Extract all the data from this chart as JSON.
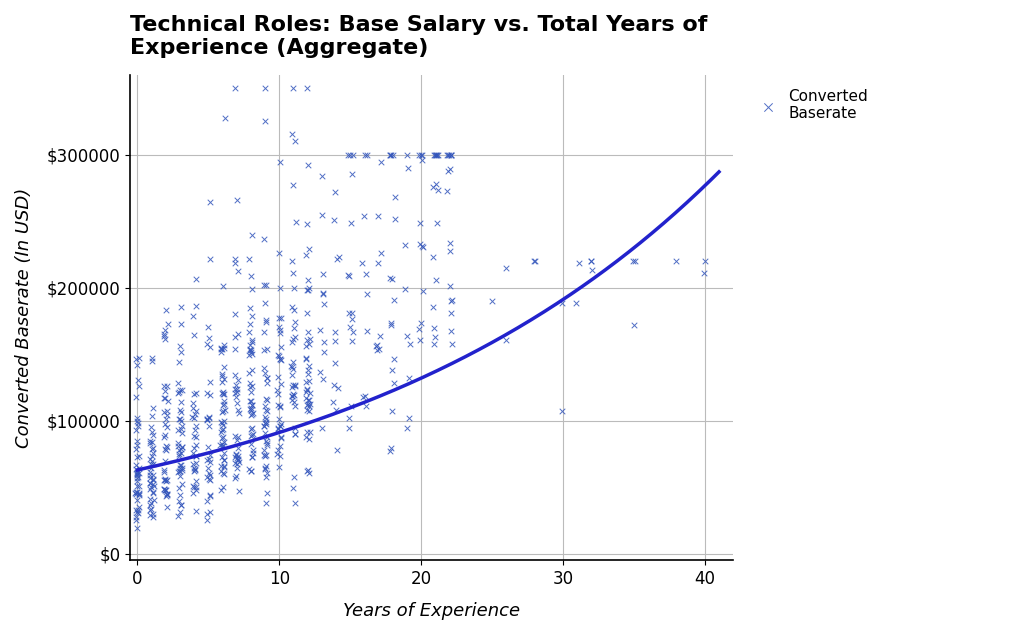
{
  "title": "Technical Roles: Base Salary vs. Total Years of\nExperience (Aggregate)",
  "xlabel": "Years of Experience",
  "ylabel": "Converted Baserate (In USD)",
  "xlim": [
    -0.5,
    42
  ],
  "ylim": [
    -5000,
    360000
  ],
  "xticks": [
    0,
    10,
    20,
    30,
    40
  ],
  "yticks": [
    0,
    100000,
    200000,
    300000
  ],
  "scatter_color": "#3355bb",
  "line_color": "#2222cc",
  "marker": "x",
  "marker_size": 4,
  "legend_label": "Converted\nBaserate",
  "seed": 7,
  "trend_a": 63000,
  "trend_b": 0.037,
  "title_fontsize": 16,
  "axis_label_fontsize": 13,
  "tick_fontsize": 12,
  "background_color": "#ffffff",
  "grid_color": "#bbbbbb"
}
